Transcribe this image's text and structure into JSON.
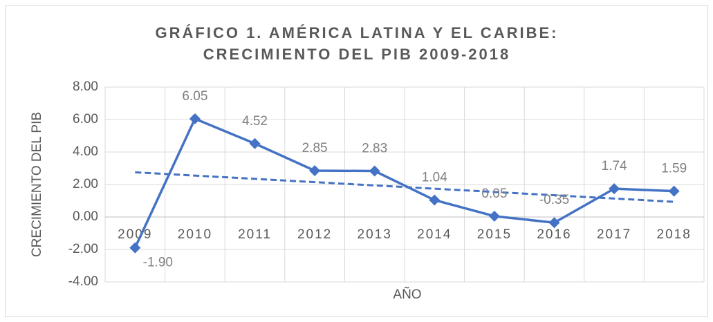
{
  "chart_data": {
    "type": "line",
    "title": [
      "GRÁFICO 1. AMÉRICA LATINA Y EL CARIBE:",
      "CRECIMIENTO DEL PIB 2009-2018"
    ],
    "x_label": "AÑO",
    "y_label": "CRECIMIENTO DEL PIB",
    "categories": [
      "2009",
      "2010",
      "2011",
      "2012",
      "2013",
      "2014",
      "2015",
      "2016",
      "2017",
      "2018"
    ],
    "values": [
      -1.9,
      6.05,
      4.52,
      2.85,
      2.83,
      1.04,
      0.05,
      -0.35,
      1.74,
      1.59
    ],
    "value_labels": [
      "-1.90",
      "6.05",
      "4.52",
      "2.85",
      "2.83",
      "1.04",
      "0.05",
      "-0.35",
      "1.74",
      "1.59"
    ],
    "color": "#4472c4",
    "trendline": true,
    "grid": true,
    "ylim": [
      -4,
      8
    ],
    "yticks": [
      {
        "value": -4,
        "label": "-4.00"
      },
      {
        "value": -2,
        "label": "-2.00"
      },
      {
        "value": 0,
        "label": "0.00"
      },
      {
        "value": 2,
        "label": "2.00"
      },
      {
        "value": 4,
        "label": "4.00"
      },
      {
        "value": 6,
        "label": "6.00"
      },
      {
        "value": 8,
        "label": "8.00"
      }
    ]
  }
}
